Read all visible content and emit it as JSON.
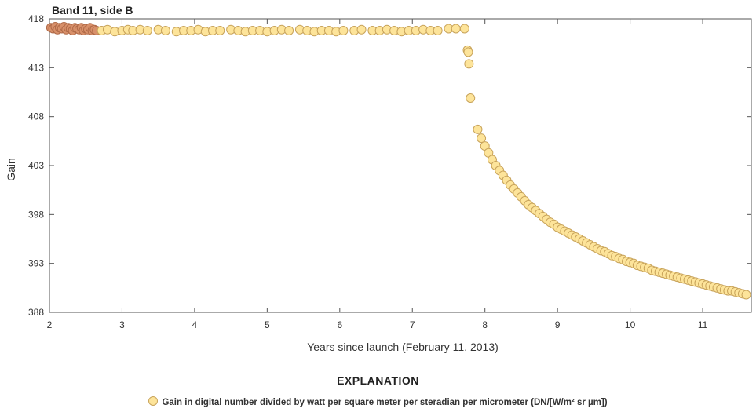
{
  "chart_data": {
    "type": "scatter",
    "title": "Band 11, side B",
    "xlabel": "Years since launch (February 11, 2013)",
    "ylabel": "Gain",
    "xlim": [
      2,
      11.67
    ],
    "ylim": [
      388,
      418
    ],
    "x_ticks": [
      2,
      3,
      4,
      5,
      6,
      7,
      8,
      9,
      10,
      11
    ],
    "y_ticks": [
      388,
      393,
      398,
      403,
      408,
      413,
      418
    ],
    "grid": false,
    "legend_position": "bottom-center",
    "marker_fill": "#fde49a",
    "marker_edge": "#c8a35a",
    "early_marker_fill": "#d8906a",
    "early_marker_edge": "#b06a48",
    "series": [
      {
        "name": "Gain in digital number divided by watt per square meter per steradian per micrometer (DN/[W/m² sr µm])",
        "points": [
          [
            2.02,
            417.1
          ],
          [
            2.05,
            417.0
          ],
          [
            2.08,
            417.2
          ],
          [
            2.11,
            416.9
          ],
          [
            2.14,
            417.1
          ],
          [
            2.17,
            417.0
          ],
          [
            2.2,
            417.2
          ],
          [
            2.23,
            416.9
          ],
          [
            2.26,
            417.1
          ],
          [
            2.29,
            417.0
          ],
          [
            2.32,
            416.8
          ],
          [
            2.35,
            417.1
          ],
          [
            2.38,
            417.0
          ],
          [
            2.41,
            416.9
          ],
          [
            2.44,
            417.1
          ],
          [
            2.47,
            416.8
          ],
          [
            2.5,
            417.0
          ],
          [
            2.53,
            416.9
          ],
          [
            2.56,
            417.1
          ],
          [
            2.59,
            416.8
          ],
          [
            2.62,
            416.9
          ],
          [
            2.65,
            416.8
          ],
          [
            2.72,
            416.8
          ],
          [
            2.8,
            416.9
          ],
          [
            2.9,
            416.7
          ],
          [
            3.0,
            416.8
          ],
          [
            3.08,
            416.9
          ],
          [
            3.15,
            416.8
          ],
          [
            3.25,
            416.9
          ],
          [
            3.35,
            416.8
          ],
          [
            3.5,
            416.9
          ],
          [
            3.6,
            416.8
          ],
          [
            3.75,
            416.7
          ],
          [
            3.85,
            416.8
          ],
          [
            3.95,
            416.8
          ],
          [
            4.05,
            416.9
          ],
          [
            4.15,
            416.7
          ],
          [
            4.25,
            416.8
          ],
          [
            4.35,
            416.8
          ],
          [
            4.5,
            416.9
          ],
          [
            4.6,
            416.8
          ],
          [
            4.7,
            416.7
          ],
          [
            4.8,
            416.8
          ],
          [
            4.9,
            416.8
          ],
          [
            5.0,
            416.7
          ],
          [
            5.1,
            416.8
          ],
          [
            5.2,
            416.9
          ],
          [
            5.3,
            416.8
          ],
          [
            5.45,
            416.9
          ],
          [
            5.55,
            416.8
          ],
          [
            5.65,
            416.7
          ],
          [
            5.75,
            416.8
          ],
          [
            5.85,
            416.8
          ],
          [
            5.95,
            416.7
          ],
          [
            6.05,
            416.8
          ],
          [
            6.2,
            416.8
          ],
          [
            6.3,
            416.9
          ],
          [
            6.45,
            416.8
          ],
          [
            6.55,
            416.8
          ],
          [
            6.65,
            416.9
          ],
          [
            6.75,
            416.8
          ],
          [
            6.85,
            416.7
          ],
          [
            6.95,
            416.8
          ],
          [
            7.05,
            416.8
          ],
          [
            7.15,
            416.9
          ],
          [
            7.25,
            416.8
          ],
          [
            7.35,
            416.8
          ],
          [
            7.5,
            417.0
          ],
          [
            7.6,
            417.0
          ],
          [
            7.72,
            417.0
          ],
          [
            7.76,
            414.8
          ],
          [
            7.77,
            414.6
          ],
          [
            7.78,
            413.4
          ],
          [
            7.8,
            409.9
          ],
          [
            7.9,
            406.7
          ],
          [
            7.95,
            405.8
          ],
          [
            8.0,
            405.0
          ],
          [
            8.05,
            404.3
          ],
          [
            8.1,
            403.6
          ],
          [
            8.15,
            403.0
          ],
          [
            8.2,
            402.5
          ],
          [
            8.25,
            402.0
          ],
          [
            8.3,
            401.5
          ],
          [
            8.35,
            401.0
          ],
          [
            8.4,
            400.6
          ],
          [
            8.45,
            400.2
          ],
          [
            8.5,
            399.8
          ],
          [
            8.55,
            399.4
          ],
          [
            8.6,
            399.0
          ],
          [
            8.65,
            398.7
          ],
          [
            8.7,
            398.4
          ],
          [
            8.75,
            398.1
          ],
          [
            8.8,
            397.8
          ],
          [
            8.85,
            397.5
          ],
          [
            8.9,
            397.2
          ],
          [
            8.95,
            397.0
          ],
          [
            9.0,
            396.7
          ],
          [
            9.05,
            396.5
          ],
          [
            9.1,
            396.3
          ],
          [
            9.15,
            396.1
          ],
          [
            9.2,
            395.9
          ],
          [
            9.25,
            395.7
          ],
          [
            9.3,
            395.5
          ],
          [
            9.35,
            395.3
          ],
          [
            9.4,
            395.1
          ],
          [
            9.45,
            394.9
          ],
          [
            9.5,
            394.7
          ],
          [
            9.55,
            394.5
          ],
          [
            9.6,
            394.3
          ],
          [
            9.65,
            394.2
          ],
          [
            9.7,
            394.0
          ],
          [
            9.75,
            393.8
          ],
          [
            9.8,
            393.7
          ],
          [
            9.85,
            393.5
          ],
          [
            9.9,
            393.4
          ],
          [
            9.95,
            393.2
          ],
          [
            10.0,
            393.1
          ],
          [
            10.05,
            393.0
          ],
          [
            10.1,
            392.8
          ],
          [
            10.15,
            392.7
          ],
          [
            10.2,
            392.6
          ],
          [
            10.25,
            392.5
          ],
          [
            10.3,
            392.3
          ],
          [
            10.35,
            392.2
          ],
          [
            10.4,
            392.1
          ],
          [
            10.45,
            392.0
          ],
          [
            10.5,
            391.9
          ],
          [
            10.55,
            391.8
          ],
          [
            10.6,
            391.7
          ],
          [
            10.65,
            391.6
          ],
          [
            10.7,
            391.5
          ],
          [
            10.75,
            391.4
          ],
          [
            10.8,
            391.3
          ],
          [
            10.85,
            391.2
          ],
          [
            10.9,
            391.1
          ],
          [
            10.95,
            391.0
          ],
          [
            11.0,
            390.9
          ],
          [
            11.05,
            390.8
          ],
          [
            11.1,
            390.7
          ],
          [
            11.15,
            390.6
          ],
          [
            11.2,
            390.5
          ],
          [
            11.25,
            390.4
          ],
          [
            11.3,
            390.3
          ],
          [
            11.35,
            390.2
          ],
          [
            11.4,
            390.2
          ],
          [
            11.45,
            390.1
          ],
          [
            11.5,
            390.0
          ],
          [
            11.55,
            389.9
          ],
          [
            11.6,
            389.8
          ]
        ]
      }
    ]
  },
  "legend": {
    "heading": "EXPLANATION",
    "label": "Gain in digital number divided by watt per square meter per steradian per micrometer (DN/[W/m² sr µm])"
  }
}
